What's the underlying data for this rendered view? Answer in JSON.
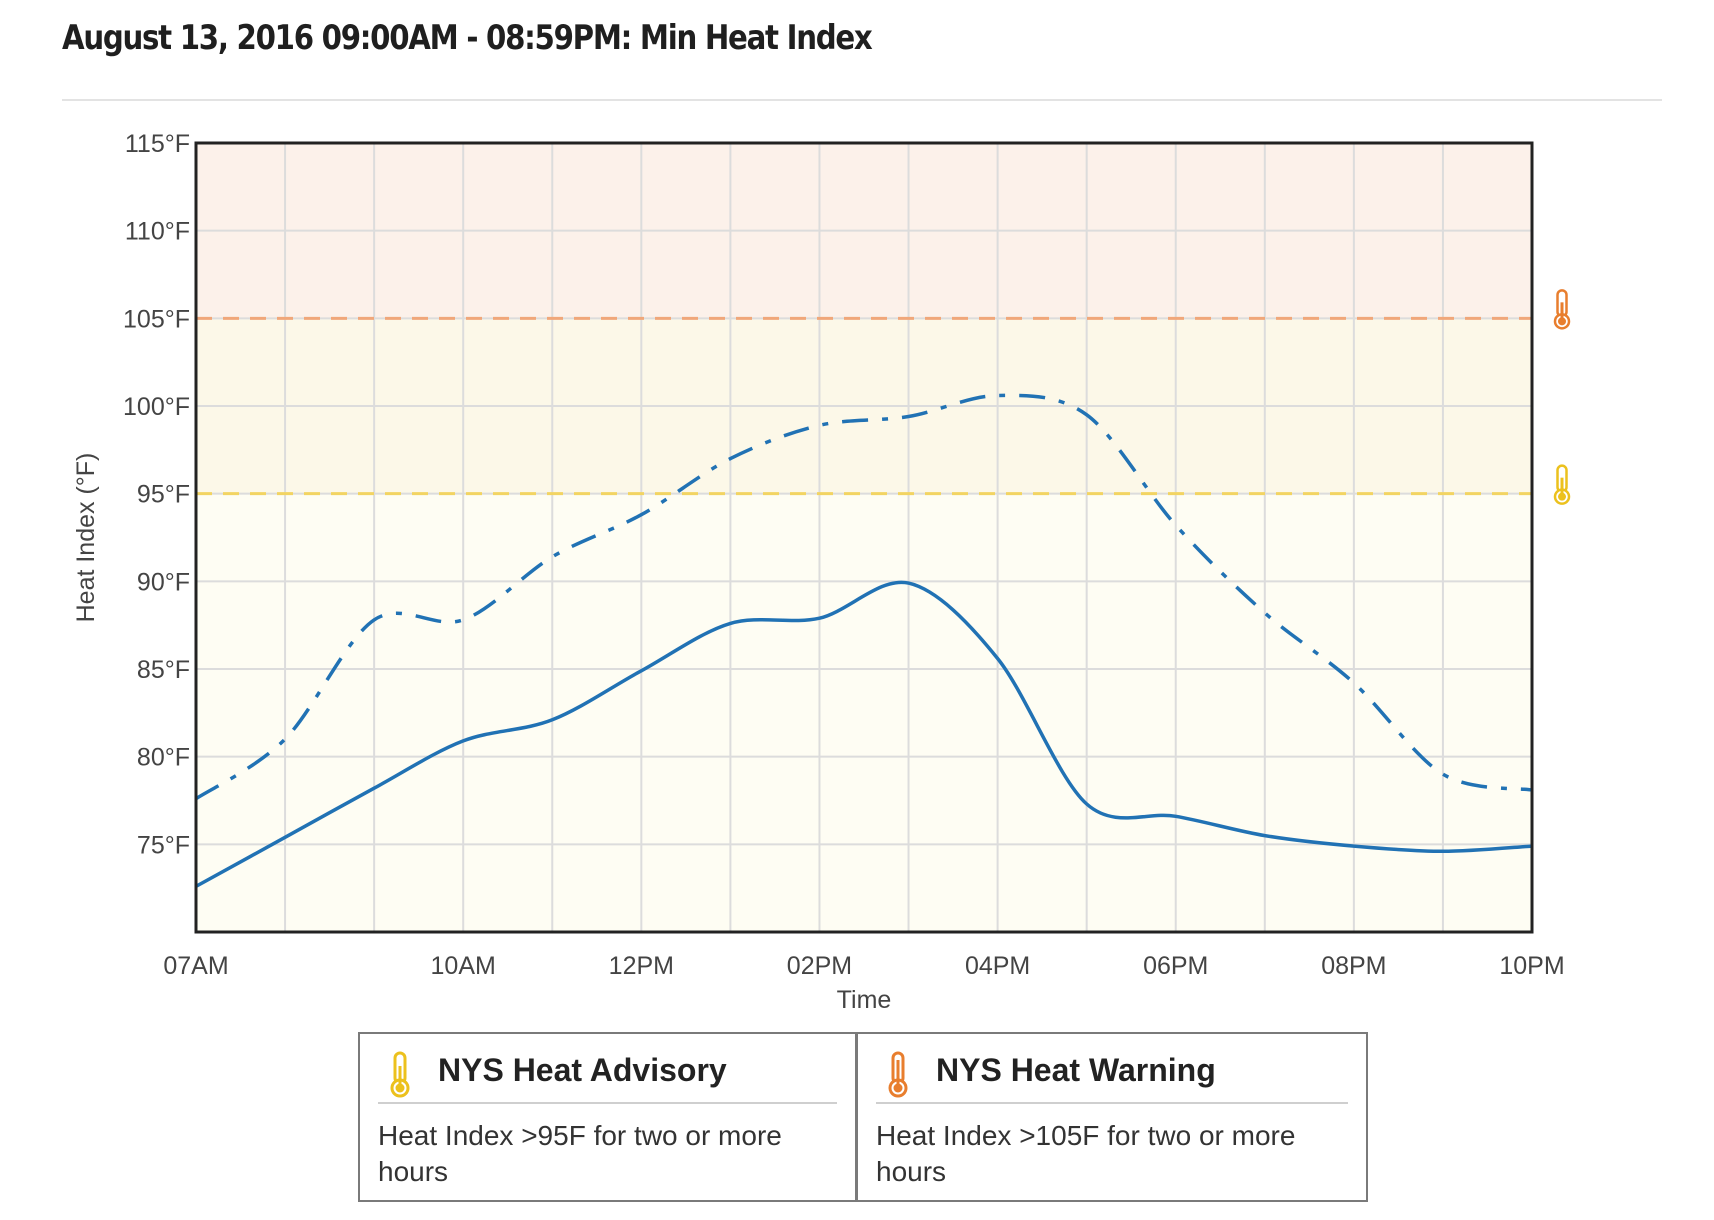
{
  "page": {
    "title": "August 13, 2016 09:00AM - 08:59PM: Min Heat Index"
  },
  "chart_data": {
    "type": "line",
    "xlabel": "Time",
    "ylabel": "Heat Index (°F)",
    "x_ticks": [
      "07AM",
      "10AM",
      "12PM",
      "02PM",
      "04PM",
      "06PM",
      "08PM",
      "10PM"
    ],
    "x_tick_hours": [
      7,
      10,
      12,
      14,
      16,
      18,
      20,
      22
    ],
    "xlim": [
      7,
      22
    ],
    "ylim": [
      70,
      115
    ],
    "y_ticks": [
      75,
      80,
      85,
      90,
      95,
      100,
      105,
      110,
      115
    ],
    "y_tick_format": "°F",
    "grid": true,
    "thresholds": [
      {
        "value": 95,
        "color": "#f2d462"
      },
      {
        "value": 105,
        "color": "#f0a77a"
      }
    ],
    "bands": [
      {
        "from": 70,
        "to": 95,
        "color": "#fefdf3"
      },
      {
        "from": 95,
        "to": 105,
        "color": "#fcf8e8"
      },
      {
        "from": 105,
        "to": 115,
        "color": "#fcf1ea"
      }
    ],
    "series": [
      {
        "style": "dashdot",
        "color": "#2172b4",
        "x": [
          7,
          8,
          9,
          10,
          11,
          12,
          13,
          14,
          15,
          16,
          17,
          18,
          19,
          20,
          21,
          22
        ],
        "values": [
          77.6,
          81.0,
          87.8,
          87.8,
          91.4,
          93.8,
          97.0,
          98.9,
          99.4,
          100.6,
          99.5,
          93.2,
          88.2,
          84.2,
          79.0,
          78.1
        ]
      },
      {
        "style": "solid",
        "color": "#2172b4",
        "x": [
          7,
          8,
          9,
          10,
          11,
          12,
          13,
          14,
          15,
          16,
          17,
          18,
          19,
          20,
          21,
          22
        ],
        "values": [
          72.6,
          75.4,
          78.2,
          80.9,
          82.1,
          84.9,
          87.6,
          87.9,
          89.9,
          85.6,
          77.3,
          76.6,
          75.5,
          74.9,
          74.6,
          74.9
        ]
      }
    ]
  },
  "legend": {
    "advisory": {
      "icon": "thermometer-yellow-icon",
      "color": "#ecc11d",
      "title": "NYS Heat Advisory",
      "description": "Heat Index >95F for two or more hours"
    },
    "warning": {
      "icon": "thermometer-orange-icon",
      "color": "#e87e2e",
      "title": "NYS Heat Warning",
      "description": "Heat Index >105F for two or more hours"
    }
  }
}
